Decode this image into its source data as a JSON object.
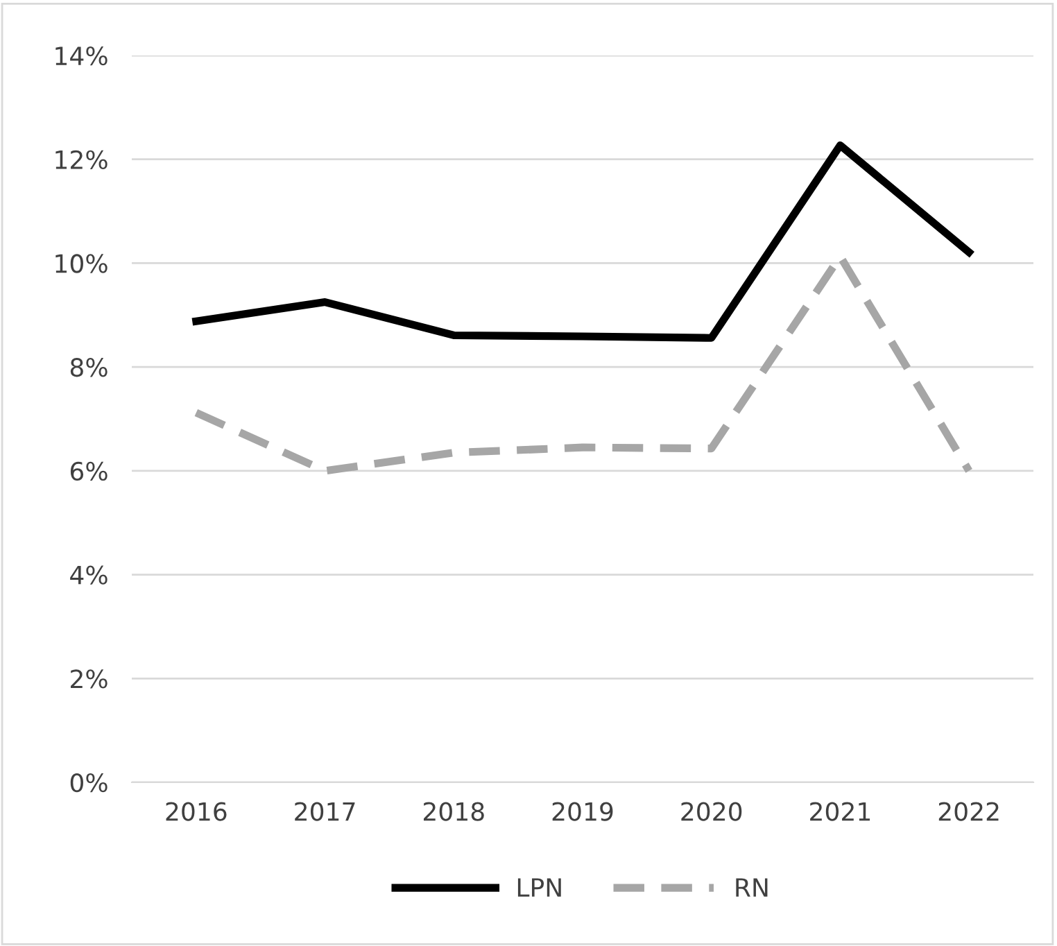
{
  "chart_data": {
    "type": "line",
    "categories": [
      "2016",
      "2017",
      "2018",
      "2019",
      "2020",
      "2021",
      "2022"
    ],
    "series": [
      {
        "name": "LPN",
        "color": "#000000",
        "line_style": "solid",
        "values": [
          8.88,
          9.25,
          8.61,
          8.59,
          8.56,
          12.27,
          10.21
        ]
      },
      {
        "name": "RN",
        "color": "#a6a6a6",
        "line_style": "dashed",
        "values": [
          7.12,
          6.0,
          6.35,
          6.45,
          6.43,
          10.13,
          6.0
        ]
      }
    ],
    "ylim": [
      0,
      14
    ],
    "yticks": [
      {
        "value": 0,
        "label": "0%"
      },
      {
        "value": 2,
        "label": "2%"
      },
      {
        "value": 4,
        "label": "4%"
      },
      {
        "value": 6,
        "label": "6%"
      },
      {
        "value": 8,
        "label": "8%"
      },
      {
        "value": 10,
        "label": "10%"
      },
      {
        "value": 12,
        "label": "12%"
      },
      {
        "value": 14,
        "label": "14%"
      }
    ],
    "grid": "y",
    "legend": "bottom",
    "marker": "none"
  }
}
